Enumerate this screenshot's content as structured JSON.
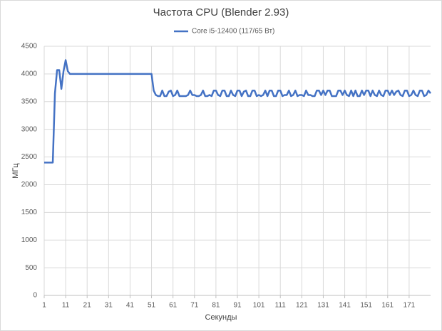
{
  "chart_data": {
    "type": "line",
    "title": "Частота CPU (Blender 2.93)",
    "x_label": "Секунды",
    "y_label": "МГц",
    "x": [
      1,
      2,
      3,
      4,
      5,
      6,
      7,
      8,
      9,
      10,
      11,
      12,
      13,
      14,
      15,
      16,
      17,
      18,
      19,
      20,
      21,
      22,
      23,
      24,
      25,
      26,
      27,
      28,
      29,
      30,
      31,
      32,
      33,
      34,
      35,
      36,
      37,
      38,
      39,
      40,
      41,
      42,
      43,
      44,
      45,
      46,
      47,
      48,
      49,
      50,
      51,
      52,
      53,
      54,
      55,
      56,
      57,
      58,
      59,
      60,
      61,
      62,
      63,
      64,
      65,
      66,
      67,
      68,
      69,
      70,
      71,
      72,
      73,
      74,
      75,
      76,
      77,
      78,
      79,
      80,
      81,
      82,
      83,
      84,
      85,
      86,
      87,
      88,
      89,
      90,
      91,
      92,
      93,
      94,
      95,
      96,
      97,
      98,
      99,
      100,
      101,
      102,
      103,
      104,
      105,
      106,
      107,
      108,
      109,
      110,
      111,
      112,
      113,
      114,
      115,
      116,
      117,
      118,
      119,
      120,
      121,
      122,
      123,
      124,
      125,
      126,
      127,
      128,
      129,
      130,
      131,
      132,
      133,
      134,
      135,
      136,
      137,
      138,
      139,
      140,
      141,
      142,
      143,
      144,
      145,
      146,
      147,
      148,
      149,
      150,
      151,
      152,
      153,
      154,
      155,
      156,
      157,
      158,
      159,
      160,
      161,
      162,
      163,
      164,
      165,
      166,
      167,
      168,
      169,
      170,
      171,
      172,
      173,
      174,
      175,
      176,
      177,
      178,
      179,
      180,
      181
    ],
    "series": [
      {
        "name": "Core i5-12400 (117/65 Вт)",
        "color": "#4472c4",
        "values": [
          2400,
          2400,
          2400,
          2400,
          2400,
          3650,
          4070,
          4070,
          3730,
          4050,
          4250,
          4050,
          4000,
          4000,
          4000,
          4000,
          4000,
          4000,
          4000,
          4000,
          4000,
          4000,
          4000,
          4000,
          4000,
          4000,
          4000,
          4000,
          4000,
          4000,
          4000,
          4000,
          4000,
          4000,
          4000,
          4000,
          4000,
          4000,
          4000,
          4000,
          4000,
          4000,
          4000,
          4000,
          4000,
          4000,
          4000,
          4000,
          4000,
          4000,
          4000,
          3700,
          3620,
          3600,
          3600,
          3700,
          3600,
          3600,
          3680,
          3700,
          3600,
          3620,
          3700,
          3600,
          3600,
          3600,
          3600,
          3620,
          3700,
          3620,
          3620,
          3600,
          3600,
          3620,
          3700,
          3600,
          3600,
          3620,
          3600,
          3700,
          3700,
          3620,
          3600,
          3700,
          3700,
          3600,
          3600,
          3700,
          3620,
          3600,
          3700,
          3700,
          3600,
          3680,
          3700,
          3600,
          3600,
          3700,
          3700,
          3600,
          3620,
          3600,
          3620,
          3700,
          3600,
          3700,
          3700,
          3600,
          3600,
          3700,
          3700,
          3600,
          3620,
          3620,
          3700,
          3600,
          3620,
          3700,
          3600,
          3620,
          3620,
          3600,
          3700,
          3620,
          3620,
          3600,
          3600,
          3700,
          3700,
          3620,
          3700,
          3620,
          3700,
          3700,
          3600,
          3600,
          3600,
          3700,
          3700,
          3620,
          3700,
          3620,
          3600,
          3700,
          3600,
          3700,
          3600,
          3600,
          3700,
          3620,
          3700,
          3700,
          3600,
          3700,
          3620,
          3600,
          3700,
          3620,
          3600,
          3700,
          3700,
          3620,
          3700,
          3620,
          3680,
          3700,
          3620,
          3600,
          3700,
          3700,
          3600,
          3620,
          3700,
          3620,
          3600,
          3700,
          3700,
          3600,
          3620,
          3700,
          3650
        ]
      }
    ],
    "xlim": [
      1,
      181
    ],
    "xticks": [
      1,
      11,
      21,
      31,
      41,
      51,
      61,
      71,
      81,
      91,
      101,
      111,
      121,
      131,
      141,
      151,
      161,
      171
    ],
    "ylim": [
      0,
      4500
    ],
    "yticks": [
      0,
      500,
      1000,
      1500,
      2000,
      2500,
      3000,
      3500,
      4000,
      4500
    ],
    "grid": true,
    "legend": "top"
  }
}
